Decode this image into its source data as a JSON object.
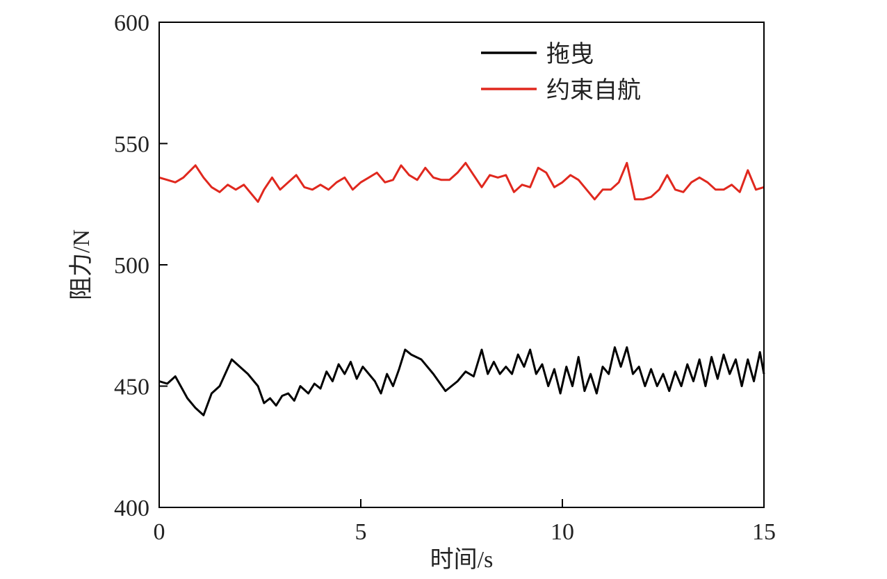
{
  "chart_data": {
    "type": "line",
    "title": "",
    "xlabel": "时间/s",
    "ylabel": "阻力/N",
    "xlim": [
      0,
      15
    ],
    "ylim": [
      400,
      600
    ],
    "x_ticks": [
      "0",
      "5",
      "10",
      "15"
    ],
    "y_ticks": [
      "400",
      "450",
      "500",
      "550",
      "600"
    ],
    "grid": false,
    "legend_position": "top-right",
    "series": [
      {
        "name": "拖曳",
        "color": "#000000",
        "x": [
          0,
          0.2,
          0.4,
          0.7,
          0.9,
          1.1,
          1.3,
          1.5,
          1.8,
          2.0,
          2.2,
          2.45,
          2.6,
          2.75,
          2.9,
          3.05,
          3.2,
          3.35,
          3.5,
          3.7,
          3.85,
          4.0,
          4.15,
          4.3,
          4.45,
          4.6,
          4.75,
          4.9,
          5.05,
          5.2,
          5.35,
          5.5,
          5.65,
          5.8,
          5.95,
          6.1,
          6.25,
          6.5,
          6.8,
          7.1,
          7.4,
          7.6,
          7.8,
          8.0,
          8.15,
          8.3,
          8.45,
          8.6,
          8.75,
          8.9,
          9.05,
          9.2,
          9.35,
          9.5,
          9.65,
          9.8,
          9.95,
          10.1,
          10.25,
          10.4,
          10.55,
          10.7,
          10.85,
          11.0,
          11.15,
          11.3,
          11.45,
          11.6,
          11.75,
          11.9,
          12.05,
          12.2,
          12.35,
          12.5,
          12.65,
          12.8,
          12.95,
          13.1,
          13.25,
          13.4,
          13.55,
          13.7,
          13.85,
          14.0,
          14.15,
          14.3,
          14.45,
          14.6,
          14.75,
          14.9,
          15.0
        ],
        "values": [
          452,
          451,
          454,
          445,
          441,
          438,
          447,
          450,
          461,
          458,
          455,
          450,
          443,
          445,
          442,
          446,
          447,
          444,
          450,
          447,
          451,
          449,
          456,
          452,
          459,
          455,
          460,
          453,
          458,
          455,
          452,
          447,
          455,
          450,
          457,
          465,
          463,
          461,
          455,
          448,
          452,
          456,
          454,
          465,
          455,
          460,
          455,
          458,
          455,
          463,
          458,
          465,
          455,
          459,
          450,
          457,
          447,
          458,
          450,
          462,
          448,
          455,
          447,
          458,
          455,
          466,
          458,
          466,
          455,
          458,
          450,
          457,
          450,
          455,
          448,
          456,
          450,
          459,
          452,
          461,
          450,
          462,
          453,
          463,
          455,
          461,
          450,
          461,
          452,
          464,
          455
        ],
        "values_note": ""
      },
      {
        "name": "约束自航",
        "color": "#e0281e",
        "x": [
          0,
          0.2,
          0.4,
          0.6,
          0.9,
          1.1,
          1.3,
          1.5,
          1.7,
          1.9,
          2.1,
          2.3,
          2.45,
          2.6,
          2.8,
          3.0,
          3.2,
          3.4,
          3.6,
          3.8,
          4.0,
          4.2,
          4.4,
          4.6,
          4.8,
          5.0,
          5.2,
          5.4,
          5.6,
          5.8,
          6.0,
          6.2,
          6.4,
          6.6,
          6.8,
          7.0,
          7.2,
          7.4,
          7.6,
          7.8,
          8.0,
          8.2,
          8.4,
          8.6,
          8.8,
          9.0,
          9.2,
          9.4,
          9.6,
          9.8,
          10.0,
          10.2,
          10.4,
          10.6,
          10.8,
          11.0,
          11.2,
          11.4,
          11.6,
          11.8,
          12.0,
          12.2,
          12.4,
          12.6,
          12.8,
          13.0,
          13.2,
          13.4,
          13.6,
          13.8,
          14.0,
          14.2,
          14.4,
          14.6,
          14.8,
          15.0
        ],
        "values": [
          536,
          535,
          534,
          536,
          541,
          536,
          532,
          530,
          533,
          531,
          533,
          529,
          526,
          531,
          536,
          531,
          534,
          537,
          532,
          531,
          533,
          531,
          534,
          536,
          531,
          534,
          536,
          538,
          534,
          535,
          541,
          537,
          535,
          540,
          536,
          535,
          535,
          538,
          542,
          537,
          532,
          537,
          536,
          537,
          530,
          533,
          532,
          540,
          538,
          532,
          534,
          537,
          535,
          531,
          527,
          531,
          531,
          534,
          542,
          527,
          527,
          528,
          531,
          537,
          531,
          530,
          534,
          536,
          534,
          531,
          531,
          533,
          530,
          539,
          531,
          532
        ]
      }
    ]
  }
}
